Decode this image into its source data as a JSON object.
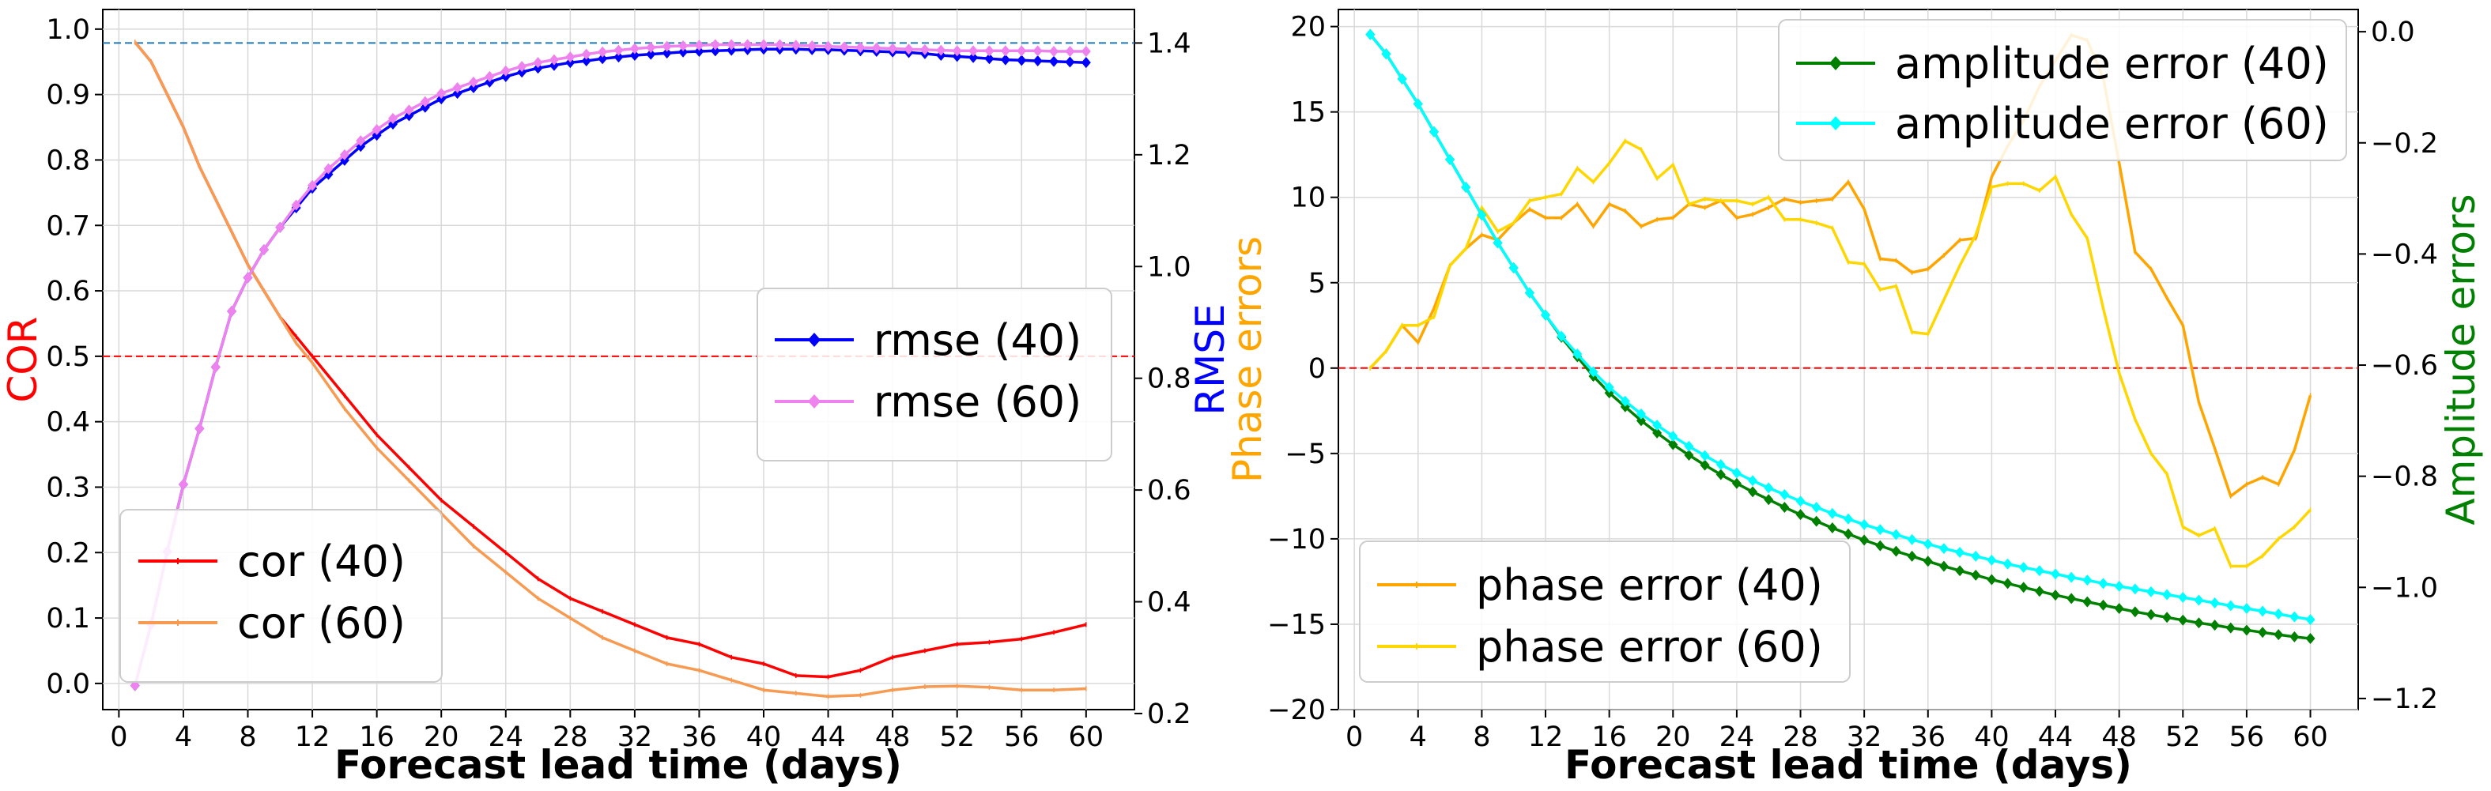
{
  "chart_data": [
    {
      "type": "line",
      "panel": "left",
      "xlabel": "Forecast lead time (days)",
      "ylabel": "COR",
      "ylabel_color": "#ff0000",
      "y2label": "RMSE",
      "y2label_color": "#0000ff",
      "xlim": [
        -1,
        63
      ],
      "ylim": [
        -0.04,
        1.03
      ],
      "y2lim": [
        0.207,
        1.46
      ],
      "xticks": [
        0,
        4,
        8,
        12,
        16,
        20,
        24,
        28,
        32,
        36,
        40,
        44,
        48,
        52,
        56,
        60
      ],
      "yticks": [
        0.0,
        0.1,
        0.2,
        0.3,
        0.4,
        0.5,
        0.6,
        0.7,
        0.8,
        0.9,
        1.0
      ],
      "y2ticks": [
        0.2,
        0.4,
        0.6,
        0.8,
        1.0,
        1.2,
        1.4
      ],
      "hlines": [
        {
          "axis": "left",
          "value": 0.5,
          "color": "#ff0000"
        },
        {
          "axis": "right",
          "value": 1.4,
          "color": "#1f77b4"
        }
      ],
      "series_left": [
        {
          "name": "cor (40)",
          "color": "#ff0000",
          "x": [
            1,
            2,
            3,
            4,
            5,
            6,
            7,
            8,
            9,
            10,
            11,
            12,
            14,
            16,
            18,
            20,
            22,
            24,
            26,
            28,
            30,
            32,
            34,
            36,
            38,
            40,
            42,
            44,
            46,
            48,
            50,
            52,
            54,
            56,
            58,
            60
          ],
          "values": [
            0.98,
            0.95,
            0.9,
            0.85,
            0.79,
            0.74,
            0.69,
            0.64,
            0.6,
            0.56,
            0.53,
            0.5,
            0.44,
            0.38,
            0.33,
            0.28,
            0.24,
            0.2,
            0.16,
            0.13,
            0.11,
            0.09,
            0.07,
            0.06,
            0.04,
            0.03,
            0.012,
            0.01,
            0.02,
            0.04,
            0.05,
            0.06,
            0.063,
            0.068,
            0.078,
            0.09
          ]
        },
        {
          "name": "cor (60)",
          "color": "#f79a52",
          "x": [
            1,
            2,
            3,
            4,
            5,
            6,
            7,
            8,
            9,
            10,
            11,
            12,
            14,
            16,
            18,
            20,
            22,
            24,
            26,
            28,
            30,
            32,
            34,
            36,
            38,
            40,
            42,
            44,
            46,
            48,
            50,
            52,
            54,
            56,
            58,
            60
          ],
          "values": [
            0.98,
            0.95,
            0.9,
            0.85,
            0.79,
            0.74,
            0.69,
            0.64,
            0.6,
            0.56,
            0.52,
            0.49,
            0.42,
            0.36,
            0.31,
            0.26,
            0.21,
            0.17,
            0.13,
            0.1,
            0.07,
            0.05,
            0.03,
            0.02,
            0.005,
            -0.01,
            -0.015,
            -0.02,
            -0.018,
            -0.01,
            -0.005,
            -0.004,
            -0.006,
            -0.01,
            -0.01,
            -0.008
          ]
        }
      ],
      "series_right": [
        {
          "name": "rmse (40)",
          "color": "#0000ff",
          "x": [
            1,
            2,
            3,
            4,
            5,
            6,
            7,
            8,
            9,
            10,
            11,
            12,
            13,
            14,
            15,
            16,
            17,
            18,
            19,
            20,
            21,
            22,
            23,
            24,
            25,
            26,
            27,
            28,
            29,
            30,
            31,
            32,
            33,
            34,
            35,
            36,
            37,
            38,
            39,
            40,
            41,
            42,
            43,
            44,
            45,
            46,
            47,
            48,
            49,
            50,
            51,
            52,
            53,
            54,
            55,
            56,
            57,
            58,
            59,
            60
          ],
          "values": [
            0.25,
            0.36,
            0.49,
            0.61,
            0.71,
            0.82,
            0.92,
            0.98,
            1.03,
            1.07,
            1.105,
            1.14,
            1.165,
            1.19,
            1.215,
            1.235,
            1.255,
            1.27,
            1.285,
            1.3,
            1.31,
            1.32,
            1.33,
            1.34,
            1.348,
            1.355,
            1.36,
            1.365,
            1.368,
            1.372,
            1.375,
            1.378,
            1.38,
            1.382,
            1.384,
            1.385,
            1.386,
            1.387,
            1.388,
            1.389,
            1.389,
            1.389,
            1.388,
            1.388,
            1.387,
            1.386,
            1.385,
            1.384,
            1.383,
            1.381,
            1.378,
            1.376,
            1.374,
            1.372,
            1.37,
            1.369,
            1.368,
            1.367,
            1.366,
            1.365
          ]
        },
        {
          "name": "rmse (60)",
          "color": "#ee82ee",
          "x": [
            1,
            2,
            3,
            4,
            5,
            6,
            7,
            8,
            9,
            10,
            11,
            12,
            13,
            14,
            15,
            16,
            17,
            18,
            19,
            20,
            21,
            22,
            23,
            24,
            25,
            26,
            27,
            28,
            29,
            30,
            31,
            32,
            33,
            34,
            35,
            36,
            37,
            38,
            39,
            40,
            41,
            42,
            43,
            44,
            45,
            46,
            47,
            48,
            49,
            50,
            51,
            52,
            53,
            54,
            55,
            56,
            57,
            58,
            59,
            60
          ],
          "values": [
            0.25,
            0.36,
            0.49,
            0.61,
            0.71,
            0.82,
            0.92,
            0.98,
            1.03,
            1.07,
            1.11,
            1.145,
            1.175,
            1.2,
            1.225,
            1.245,
            1.265,
            1.28,
            1.295,
            1.31,
            1.32,
            1.33,
            1.34,
            1.35,
            1.358,
            1.365,
            1.37,
            1.375,
            1.38,
            1.384,
            1.387,
            1.39,
            1.392,
            1.394,
            1.395,
            1.396,
            1.397,
            1.397,
            1.397,
            1.397,
            1.397,
            1.396,
            1.395,
            1.394,
            1.393,
            1.392,
            1.391,
            1.39,
            1.389,
            1.388,
            1.387,
            1.386,
            1.386,
            1.386,
            1.386,
            1.386,
            1.386,
            1.385,
            1.385,
            1.385
          ]
        }
      ]
    },
    {
      "type": "line",
      "panel": "right",
      "xlabel": "Forecast lead time (days)",
      "ylabel": "Phase errors",
      "ylabel_color": "#ffa500",
      "y2label": "Amplitude errors",
      "y2label_color": "#008000",
      "xlim": [
        -1,
        63
      ],
      "ylim": [
        -20,
        21
      ],
      "y2lim": [
        -1.22,
        0.04
      ],
      "xticks": [
        0,
        4,
        8,
        12,
        16,
        20,
        24,
        28,
        32,
        36,
        40,
        44,
        48,
        52,
        56,
        60
      ],
      "yticks": [
        -20,
        -15,
        -10,
        -5,
        0,
        5,
        10,
        15,
        20
      ],
      "y2ticks": [
        -1.2,
        -1.0,
        -0.8,
        -0.6,
        -0.4,
        -0.2,
        0.0
      ],
      "hlines": [
        {
          "axis": "left",
          "value": 0,
          "color": "#ff0000"
        }
      ],
      "series_left": [
        {
          "name": "phase error (40)",
          "color": "#ffa500",
          "x": [
            1,
            2,
            3,
            4,
            5,
            6,
            7,
            8,
            9,
            10,
            11,
            12,
            13,
            14,
            15,
            16,
            17,
            18,
            19,
            20,
            21,
            22,
            23,
            24,
            25,
            26,
            27,
            28,
            29,
            30,
            31,
            32,
            33,
            34,
            35,
            36,
            37,
            38,
            39,
            40,
            41,
            42,
            43,
            44,
            45,
            46,
            47,
            48,
            49,
            50,
            51,
            52,
            53,
            54,
            55,
            56,
            57,
            58,
            59,
            60
          ],
          "values": [
            0,
            1,
            2.5,
            1.5,
            3.5,
            6,
            7,
            7.8,
            7.5,
            8.5,
            9.3,
            8.8,
            8.8,
            9.6,
            8.3,
            9.6,
            9.2,
            8.3,
            8.7,
            8.8,
            9.6,
            9.4,
            9.8,
            8.8,
            9,
            9.4,
            9.9,
            9.7,
            9.8,
            9.9,
            10.9,
            9.3,
            6.4,
            6.3,
            5.6,
            5.8,
            6.6,
            7.5,
            7.6,
            11.2,
            13,
            14.5,
            16.5,
            18,
            19.5,
            19.2,
            17,
            12,
            6.8,
            5.8,
            4.1,
            2.5,
            -2,
            -4.7,
            -7.5,
            -6.8,
            -6.4,
            -6.8,
            -4.8,
            -1.6
          ]
        },
        {
          "name": "phase error (60)",
          "color": "#ffd700",
          "x": [
            1,
            2,
            3,
            4,
            5,
            6,
            7,
            8,
            9,
            10,
            11,
            12,
            13,
            14,
            15,
            16,
            17,
            18,
            19,
            20,
            21,
            22,
            23,
            24,
            25,
            26,
            27,
            28,
            29,
            30,
            31,
            32,
            33,
            34,
            35,
            36,
            37,
            38,
            39,
            40,
            41,
            42,
            43,
            44,
            45,
            46,
            47,
            48,
            49,
            50,
            51,
            52,
            53,
            54,
            55,
            56,
            57,
            58,
            59,
            60
          ],
          "values": [
            0,
            1,
            2.5,
            2.5,
            3,
            6,
            7,
            9.4,
            8,
            8.5,
            9.8,
            10,
            10.2,
            11.7,
            10.9,
            12,
            13.3,
            12.8,
            11.1,
            11.9,
            9.6,
            9.9,
            9.8,
            9.8,
            9.6,
            10,
            8.7,
            8.7,
            8.5,
            8.2,
            6.2,
            6.1,
            4.6,
            4.8,
            2.1,
            2,
            4,
            6,
            7.8,
            10.6,
            10.8,
            10.8,
            10.4,
            11.2,
            9,
            7.6,
            3.5,
            -0.3,
            -3,
            -5,
            -6.2,
            -9.3,
            -9.8,
            -9.4,
            -11.6,
            -11.6,
            -11,
            -10,
            -9.3,
            -8.3
          ]
        }
      ],
      "series_right": [
        {
          "name": "amplitude error (40)",
          "color": "#008000",
          "x": [
            1,
            2,
            3,
            4,
            5,
            6,
            7,
            8,
            9,
            10,
            11,
            12,
            13,
            14,
            15,
            16,
            17,
            18,
            19,
            20,
            21,
            22,
            23,
            24,
            25,
            26,
            27,
            28,
            29,
            30,
            31,
            32,
            33,
            34,
            35,
            36,
            37,
            38,
            39,
            40,
            41,
            42,
            43,
            44,
            45,
            46,
            47,
            48,
            49,
            50,
            51,
            52,
            53,
            54,
            55,
            56,
            57,
            58,
            59,
            60
          ],
          "values": [
            -0.005,
            -0.04,
            -0.085,
            -0.13,
            -0.18,
            -0.23,
            -0.28,
            -0.33,
            -0.38,
            -0.425,
            -0.47,
            -0.51,
            -0.55,
            -0.585,
            -0.62,
            -0.65,
            -0.675,
            -0.7,
            -0.722,
            -0.743,
            -0.762,
            -0.78,
            -0.797,
            -0.813,
            -0.828,
            -0.842,
            -0.856,
            -0.869,
            -0.881,
            -0.893,
            -0.904,
            -0.915,
            -0.925,
            -0.935,
            -0.944,
            -0.953,
            -0.962,
            -0.97,
            -0.978,
            -0.986,
            -0.993,
            -1.0,
            -1.007,
            -1.014,
            -1.02,
            -1.026,
            -1.032,
            -1.038,
            -1.044,
            -1.049,
            -1.054,
            -1.059,
            -1.064,
            -1.068,
            -1.073,
            -1.077,
            -1.081,
            -1.085,
            -1.089,
            -1.092
          ]
        },
        {
          "name": "amplitude error (60)",
          "color": "#00ffff",
          "x": [
            1,
            2,
            3,
            4,
            5,
            6,
            7,
            8,
            9,
            10,
            11,
            12,
            13,
            14,
            15,
            16,
            17,
            18,
            19,
            20,
            21,
            22,
            23,
            24,
            25,
            26,
            27,
            28,
            29,
            30,
            31,
            32,
            33,
            34,
            35,
            36,
            37,
            38,
            39,
            40,
            41,
            42,
            43,
            44,
            45,
            46,
            47,
            48,
            49,
            50,
            51,
            52,
            53,
            54,
            55,
            56,
            57,
            58,
            59,
            60
          ],
          "values": [
            -0.005,
            -0.04,
            -0.085,
            -0.13,
            -0.18,
            -0.23,
            -0.28,
            -0.33,
            -0.38,
            -0.425,
            -0.47,
            -0.51,
            -0.548,
            -0.58,
            -0.612,
            -0.64,
            -0.665,
            -0.688,
            -0.708,
            -0.728,
            -0.746,
            -0.763,
            -0.779,
            -0.794,
            -0.808,
            -0.821,
            -0.833,
            -0.845,
            -0.856,
            -0.867,
            -0.877,
            -0.887,
            -0.896,
            -0.905,
            -0.914,
            -0.922,
            -0.93,
            -0.937,
            -0.944,
            -0.951,
            -0.958,
            -0.964,
            -0.97,
            -0.976,
            -0.982,
            -0.987,
            -0.993,
            -0.998,
            -1.003,
            -1.008,
            -1.013,
            -1.018,
            -1.023,
            -1.028,
            -1.033,
            -1.038,
            -1.043,
            -1.048,
            -1.053,
            -1.058
          ]
        }
      ]
    }
  ]
}
